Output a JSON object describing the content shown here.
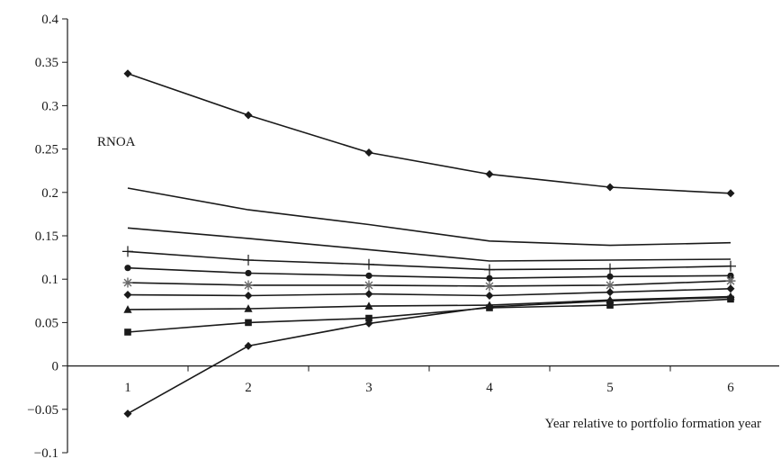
{
  "chart_data": {
    "type": "line",
    "title": "",
    "ylabel": "RNOA",
    "xlabel": "Year relative to portfolio formation year",
    "x": [
      1,
      2,
      3,
      4,
      5,
      6
    ],
    "x_ticks": [
      "1",
      "2",
      "3",
      "4",
      "5",
      "6"
    ],
    "xlim": [
      0.5,
      6.5
    ],
    "ylim": [
      -0.1,
      0.4
    ],
    "y_ticks": [
      "0.4",
      "0.35",
      "0.3",
      "0.25",
      "0.2",
      "0.15",
      "0.1",
      "0.05",
      "0",
      "−0.05",
      "−0.1"
    ],
    "y_tick_values": [
      0.4,
      0.35,
      0.3,
      0.25,
      0.2,
      0.15,
      0.1,
      0.05,
      0,
      -0.05,
      -0.1
    ],
    "grid": false,
    "legend": "none",
    "line_color": "#1a1a1a",
    "series": [
      {
        "marker": "diamond",
        "values": [
          0.337,
          0.289,
          0.246,
          0.221,
          0.206,
          0.199
        ]
      },
      {
        "marker": "none",
        "values": [
          0.205,
          0.18,
          0.163,
          0.144,
          0.139,
          0.142
        ]
      },
      {
        "marker": "none",
        "values": [
          0.159,
          0.147,
          0.134,
          0.121,
          0.122,
          0.123
        ]
      },
      {
        "marker": "plus",
        "values": [
          0.132,
          0.122,
          0.117,
          0.111,
          0.112,
          0.115
        ]
      },
      {
        "marker": "circle",
        "values": [
          0.113,
          0.107,
          0.104,
          0.101,
          0.103,
          0.104
        ]
      },
      {
        "marker": "star",
        "values": [
          0.096,
          0.093,
          0.093,
          0.092,
          0.093,
          0.098
        ]
      },
      {
        "marker": "diamond",
        "values": [
          0.082,
          0.081,
          0.083,
          0.081,
          0.085,
          0.089
        ]
      },
      {
        "marker": "triangle",
        "values": [
          0.065,
          0.066,
          0.069,
          0.07,
          0.076,
          0.08
        ]
      },
      {
        "marker": "square",
        "values": [
          0.039,
          0.05,
          0.055,
          0.067,
          0.07,
          0.077
        ]
      },
      {
        "marker": "diamond",
        "values": [
          -0.055,
          0.023,
          0.049,
          0.068,
          0.075,
          0.079
        ]
      }
    ]
  }
}
